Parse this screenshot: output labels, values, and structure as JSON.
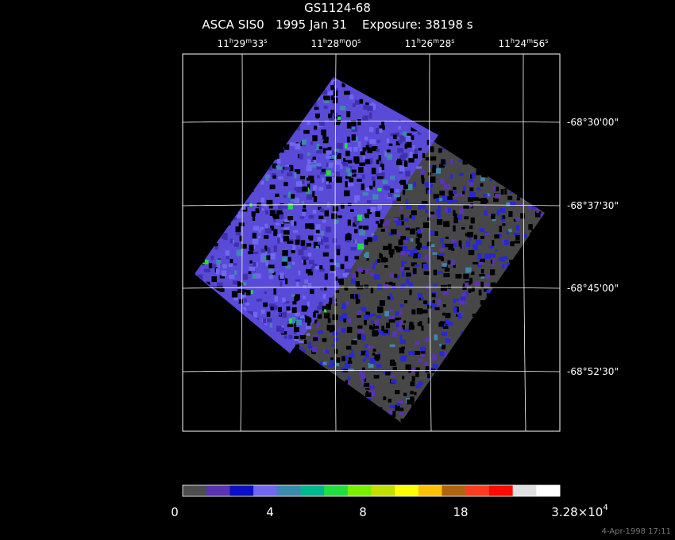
{
  "header": {
    "title": "GS1124-68",
    "subtitle": "ASCA SIS0   1995 Jan 31    Exposure: 38198 s"
  },
  "ra_labels": [
    [
      "11",
      "h",
      "29",
      "m",
      "33",
      "s"
    ],
    [
      "11",
      "h",
      "28",
      "m",
      "00",
      "s"
    ],
    [
      "11",
      "h",
      "26",
      "m",
      "28",
      "s"
    ],
    [
      "11",
      "h",
      "24",
      "m",
      "56",
      "s"
    ]
  ],
  "dec_labels": [
    "-68°30'00\"",
    "-68°37'30\"",
    "-68°45'00\"",
    "-68°52'30\""
  ],
  "colorbar": {
    "colors": [
      "#4d4d4d",
      "#5a32b4",
      "#0a10c8",
      "#7068f0",
      "#3a8ab0",
      "#00b890",
      "#20e040",
      "#78f000",
      "#c0e000",
      "#ffff00",
      "#ffc000",
      "#b06410",
      "#ff3c1e",
      "#ff0a00",
      "#e0e0e0",
      "#ffffff"
    ],
    "labels": [
      {
        "text": "0"
      },
      {
        "text": "4"
      },
      {
        "text": "8"
      },
      {
        "text": "18"
      },
      {
        "text": "3.28×10",
        "exponent": "4"
      }
    ]
  },
  "footer": {
    "timestamp": "4-Apr-1998 17:11"
  }
}
